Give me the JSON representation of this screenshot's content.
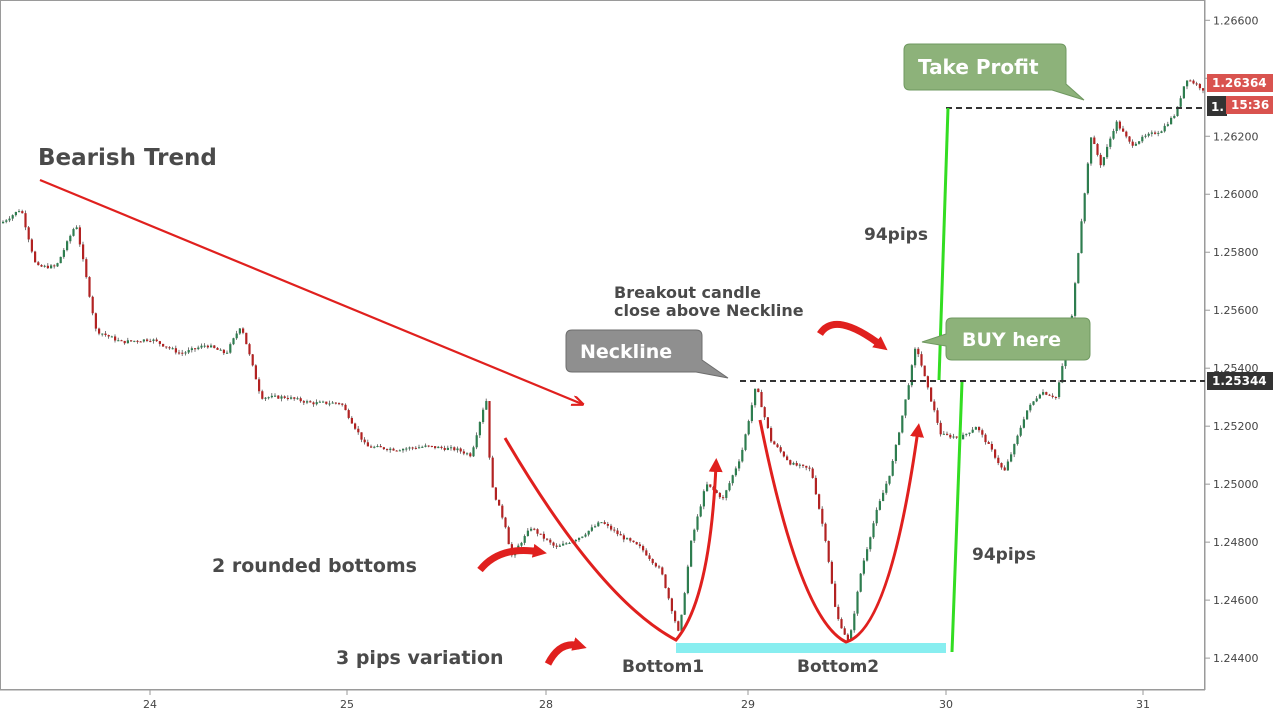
{
  "chart_data": {
    "type": "candlestick",
    "y_axis": {
      "ticks": [
        "1.26600",
        "1.26400",
        "1.26200",
        "1.26000",
        "1.25800",
        "1.25600",
        "1.25400",
        "1.25200",
        "1.25000",
        "1.24800",
        "1.24600",
        "1.24400"
      ],
      "ylim": [
        1.2429,
        1.2667
      ]
    },
    "x_axis": {
      "ticks": [
        "24",
        "25",
        "28",
        "29",
        "30",
        "31"
      ]
    },
    "price_path": [
      [
        0,
        1.259
      ],
      [
        20,
        1.2595
      ],
      [
        35,
        1.2575
      ],
      [
        55,
        1.2575
      ],
      [
        75,
        1.259
      ],
      [
        95,
        1.2553
      ],
      [
        120,
        1.2549
      ],
      [
        150,
        1.255
      ],
      [
        180,
        1.2545
      ],
      [
        205,
        1.2548
      ],
      [
        225,
        1.2545
      ],
      [
        240,
        1.2555
      ],
      [
        260,
        1.253
      ],
      [
        285,
        1.253
      ],
      [
        310,
        1.2528
      ],
      [
        340,
        1.2528
      ],
      [
        365,
        1.2513
      ],
      [
        395,
        1.2512
      ],
      [
        425,
        1.2513
      ],
      [
        455,
        1.2512
      ],
      [
        470,
        1.251
      ],
      [
        485,
        1.253
      ],
      [
        490,
        1.25
      ],
      [
        505,
        1.2485
      ],
      [
        510,
        1.2475
      ],
      [
        530,
        1.2485
      ],
      [
        555,
        1.2478
      ],
      [
        580,
        1.2482
      ],
      [
        600,
        1.2487
      ],
      [
        620,
        1.2482
      ],
      [
        640,
        1.2478
      ],
      [
        660,
        1.247
      ],
      [
        678,
        1.2448
      ],
      [
        690,
        1.248
      ],
      [
        705,
        1.25
      ],
      [
        722,
        1.2495
      ],
      [
        740,
        1.251
      ],
      [
        755,
        1.2534
      ],
      [
        770,
        1.2515
      ],
      [
        790,
        1.2507
      ],
      [
        810,
        1.2505
      ],
      [
        825,
        1.248
      ],
      [
        835,
        1.2455
      ],
      [
        848,
        1.2445
      ],
      [
        860,
        1.247
      ],
      [
        875,
        1.249
      ],
      [
        890,
        1.2505
      ],
      [
        905,
        1.253
      ],
      [
        915,
        1.2548
      ],
      [
        925,
        1.2535
      ],
      [
        940,
        1.2517
      ],
      [
        960,
        1.2516
      ],
      [
        975,
        1.252
      ],
      [
        990,
        1.2512
      ],
      [
        1003,
        1.2504
      ],
      [
        1015,
        1.2515
      ],
      [
        1025,
        1.2525
      ],
      [
        1040,
        1.2532
      ],
      [
        1055,
        1.253
      ],
      [
        1070,
        1.2555
      ],
      [
        1080,
        1.259
      ],
      [
        1090,
        1.262
      ],
      [
        1100,
        1.261
      ],
      [
        1115,
        1.2625
      ],
      [
        1130,
        1.2617
      ],
      [
        1145,
        1.262
      ],
      [
        1160,
        1.2622
      ],
      [
        1175,
        1.2628
      ],
      [
        1185,
        1.264
      ],
      [
        1195,
        1.2638
      ],
      [
        1203,
        1.2636
      ]
    ],
    "levels": {
      "neckline": 1.25344,
      "take_profit": 1.263,
      "current_price": "1.26364",
      "countdown": "15:36",
      "neckline_label": "1.25344",
      "tp_label_partial": "1."
    },
    "annotations": {
      "bearish_trend": "Bearish Trend",
      "rounded_bottoms": "2 rounded bottoms",
      "pips_variation": "3 pips variation",
      "bottom1": "Bottom1",
      "bottom2": "Bottom2",
      "breakout": [
        "Breakout candle",
        "close above Neckline"
      ],
      "neckline": "Neckline",
      "buy_here": "BUY here",
      "take_profit": "Take Profit",
      "pips_upper": "94pips",
      "pips_lower": "94pips"
    },
    "colors": {
      "bull": "#2e7d4f",
      "bear": "#b22222",
      "trend_arrow": "#e0201e",
      "green_line": "#33dd22",
      "cyan_band": "#88eef0",
      "callout_green": "#8db27a",
      "callout_grey": "#8f8f8f",
      "price_tag_red": "#d9534f",
      "price_tag_dark": "#333333"
    }
  }
}
